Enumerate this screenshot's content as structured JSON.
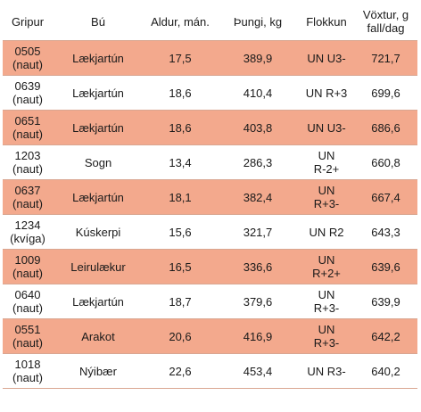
{
  "columns": [
    "Gripur",
    "Bú",
    "Aldur, mán.",
    "Þungi, kg",
    "Flokkun",
    "Vöxtur, g fall/dag"
  ],
  "rows": [
    {
      "gripur": [
        "0505",
        "(naut)"
      ],
      "bu": "Lækjartún",
      "aldur": "17,5",
      "thungi": "389,9",
      "flokkun": [
        "UN U3-"
      ],
      "voxtur": "721,7",
      "highlight": true
    },
    {
      "gripur": [
        "0639",
        "(naut)"
      ],
      "bu": "Lækjartún",
      "aldur": "18,6",
      "thungi": "410,4",
      "flokkun": [
        "UN R+3"
      ],
      "voxtur": "699,6",
      "highlight": false
    },
    {
      "gripur": [
        "0651",
        "(naut)"
      ],
      "bu": "Lækjartún",
      "aldur": "18,6",
      "thungi": "403,8",
      "flokkun": [
        "UN U3-"
      ],
      "voxtur": "686,6",
      "highlight": true
    },
    {
      "gripur": [
        "1203",
        "(naut)"
      ],
      "bu": "Sogn",
      "aldur": "13,4",
      "thungi": "286,3",
      "flokkun": [
        "UN",
        "R-2+"
      ],
      "voxtur": "660,8",
      "highlight": false
    },
    {
      "gripur": [
        "0637",
        "(naut)"
      ],
      "bu": "Lækjartún",
      "aldur": "18,1",
      "thungi": "382,4",
      "flokkun": [
        "UN",
        "R+3-"
      ],
      "voxtur": "667,4",
      "highlight": true
    },
    {
      "gripur": [
        "1234",
        "(kvíga)"
      ],
      "bu": "Kúskerpi",
      "aldur": "15,6",
      "thungi": "321,7",
      "flokkun": [
        "UN R2"
      ],
      "voxtur": "643,3",
      "highlight": false
    },
    {
      "gripur": [
        "1009",
        "(naut)"
      ],
      "bu": "Leirulækur",
      "aldur": "16,5",
      "thungi": "336,6",
      "flokkun": [
        "UN",
        "R+2+"
      ],
      "voxtur": "639,6",
      "highlight": true
    },
    {
      "gripur": [
        "0640",
        "(naut)"
      ],
      "bu": "Lækjartún",
      "aldur": "18,7",
      "thungi": "379,6",
      "flokkun": [
        "UN",
        "R+3-"
      ],
      "voxtur": "639,9",
      "highlight": false
    },
    {
      "gripur": [
        "0551",
        "(naut)"
      ],
      "bu": "Arakot",
      "aldur": "20,6",
      "thungi": "416,9",
      "flokkun": [
        "UN",
        "R+3-"
      ],
      "voxtur": "642,2",
      "highlight": true
    },
    {
      "gripur": [
        "1018",
        "(naut)"
      ],
      "bu": "Nýibær",
      "aldur": "22,6",
      "thungi": "453,4",
      "flokkun": [
        "UN R3-"
      ],
      "voxtur": "640,2",
      "highlight": false
    }
  ],
  "colors": {
    "highlight_row": "#f3a98d",
    "rule": "#d9a691"
  }
}
